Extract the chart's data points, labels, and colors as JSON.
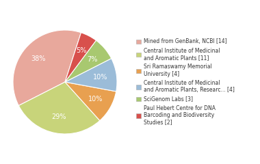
{
  "labels": [
    "Mined from GenBank, NCBI [14]",
    "Central Institute of Medicinal\nand Aromatic Plants [11]",
    "Sri Ramaswamy Memorial\nUniversity [4]",
    "Central Institute of Medicinal\nand Aromatic Plants, Researc... [4]",
    "SciGenom Labs [3]",
    "Paul Hebert Centre for DNA\nBarcoding and Biodiversity\nStudies [2]"
  ],
  "values": [
    36,
    28,
    10,
    10,
    7,
    5
  ],
  "colors": [
    "#e8a89c",
    "#c8d47a",
    "#e8a050",
    "#9bbcd8",
    "#a8c870",
    "#d8504c"
  ],
  "startangle": 72,
  "text_color": "#333333",
  "background_color": "#ffffff",
  "pct_color": "white",
  "pct_fontsize": 7.0,
  "legend_fontsize": 5.5
}
